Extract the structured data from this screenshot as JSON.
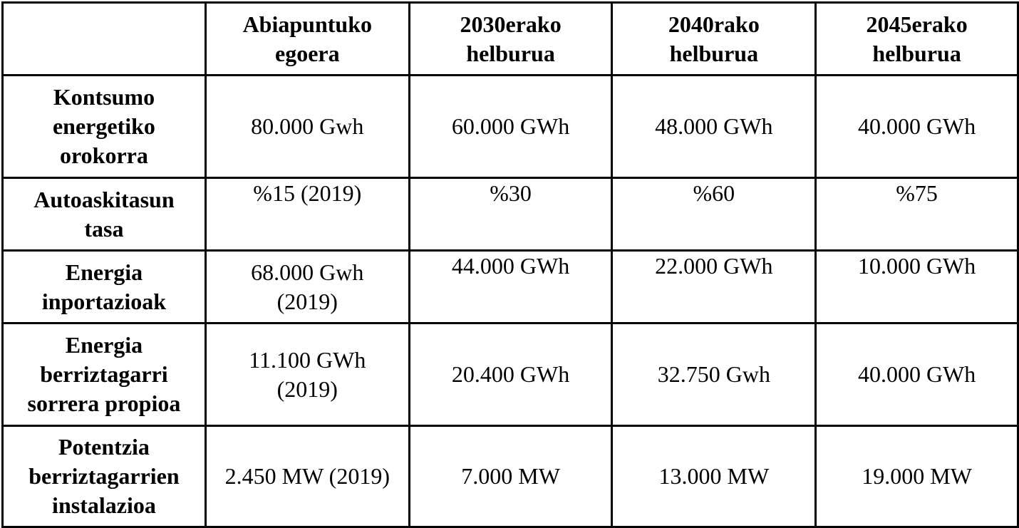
{
  "table": {
    "header": {
      "corner": "",
      "columns": [
        [
          "Abiapuntuko",
          "egoera"
        ],
        [
          "2030erako",
          "helburua"
        ],
        [
          "2040rako",
          "helburua"
        ],
        [
          "2045erako",
          "helburua"
        ]
      ]
    },
    "rows": [
      {
        "label": [
          "Kontsumo",
          "energetiko",
          "orokorra"
        ],
        "cells": [
          [
            "80.000 Gwh"
          ],
          [
            "60.000 GWh"
          ],
          [
            "48.000 GWh"
          ],
          [
            "40.000 GWh"
          ]
        ]
      },
      {
        "label": [
          "Autoaskitasun",
          "tasa"
        ],
        "cells": [
          [
            "%15 (2019)"
          ],
          [
            "%30"
          ],
          [
            "%60"
          ],
          [
            "%75"
          ]
        ]
      },
      {
        "label": [
          "Energia",
          "inportazioak"
        ],
        "cells": [
          [
            "68.000 Gwh",
            "(2019)"
          ],
          [
            "44.000 GWh"
          ],
          [
            "22.000 GWh"
          ],
          [
            "10.000 GWh"
          ]
        ]
      },
      {
        "label": [
          "Energia",
          "berriztagarri",
          "sorrera propioa"
        ],
        "cells": [
          [
            "11.100 GWh",
            "(2019)"
          ],
          [
            "20.400 GWh"
          ],
          [
            "32.750 Gwh"
          ],
          [
            "40.000 GWh"
          ]
        ]
      },
      {
        "label": [
          "Potentzia",
          "berriztagarrien",
          "instalazioa"
        ],
        "cells": [
          [
            "2.450 MW (2019)"
          ],
          [
            "7.000 MW"
          ],
          [
            "13.000 MW"
          ],
          [
            "19.000 MW"
          ]
        ]
      }
    ]
  }
}
